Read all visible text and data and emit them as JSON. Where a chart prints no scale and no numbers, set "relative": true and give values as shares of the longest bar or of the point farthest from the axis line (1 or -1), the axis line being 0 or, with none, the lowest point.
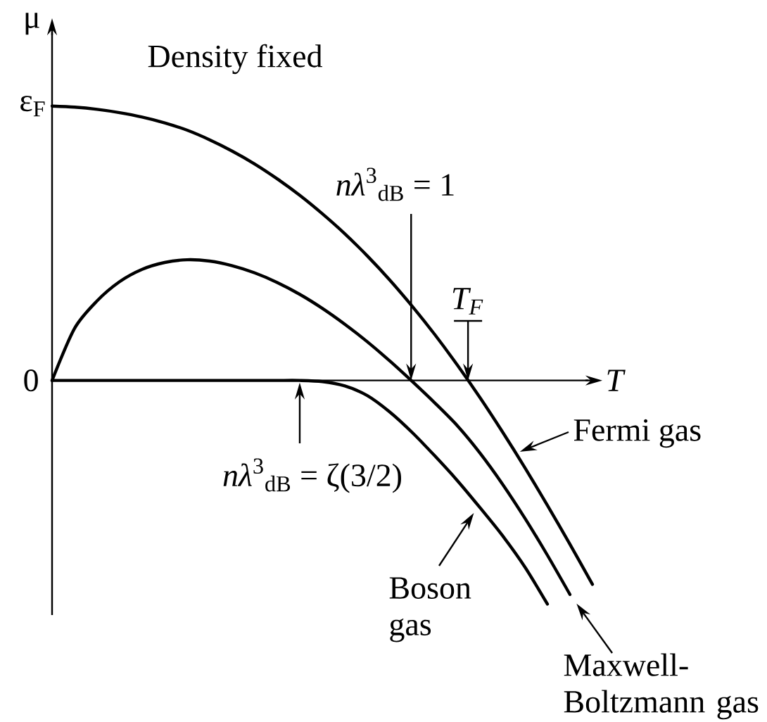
{
  "chart_data": {
    "type": "line",
    "relative": true,
    "categories": [
      null,
      null,
      null,
      null,
      null,
      null,
      null,
      null,
      null,
      null,
      null,
      null,
      null,
      null,
      null,
      null,
      null,
      null,
      null,
      null,
      null,
      null,
      null,
      null,
      null
    ],
    "series": [
      {
        "name": "Fermi gas",
        "color": "#000000",
        "values": [
          1,
          0.996,
          0.988,
          0.976,
          0.96,
          0.939,
          0.912,
          0.877,
          0.836,
          0.789,
          0.735,
          0.675,
          0.608,
          0.535,
          0.454,
          0.366,
          0.27,
          0.167,
          0.056,
          -0.062,
          -0.187,
          -0.318,
          -0.455,
          -0.597,
          -0.743
        ]
      },
      {
        "name": "Maxwell-Boltzmann gas",
        "color": "#000000",
        "values": [
          0,
          0.19,
          0.29,
          0.36,
          0.405,
          0.43,
          0.44,
          0.435,
          0.418,
          0.392,
          0.357,
          0.314,
          0.263,
          0.205,
          0.141,
          0.071,
          -0.004,
          -0.082,
          -0.165,
          -0.264,
          -0.377,
          -0.502,
          -0.637,
          -0.78,
          null
        ]
      },
      {
        "name": "Boson gas",
        "color": "#000000",
        "values": [
          0,
          0,
          0,
          0,
          0,
          0,
          0,
          0,
          0,
          0,
          0,
          0,
          -0.004,
          -0.02,
          -0.055,
          -0.115,
          -0.19,
          -0.275,
          -0.365,
          -0.463,
          -0.565,
          -0.68,
          -0.815,
          null,
          null
        ]
      }
    ],
    "xlabel": "T",
    "ylabel": "μ",
    "legend": "bottom right",
    "line_style": "solid",
    "annotations": [
      "Density fixed",
      "*nλ*$^{3}$$_{dB}$ = 1",
      "T$_{F}$",
      "*nλ*$^{3}$$_{dB}$ = ζ(3/2)",
      "ε$_{F}$",
      "0"
    ]
  }
}
